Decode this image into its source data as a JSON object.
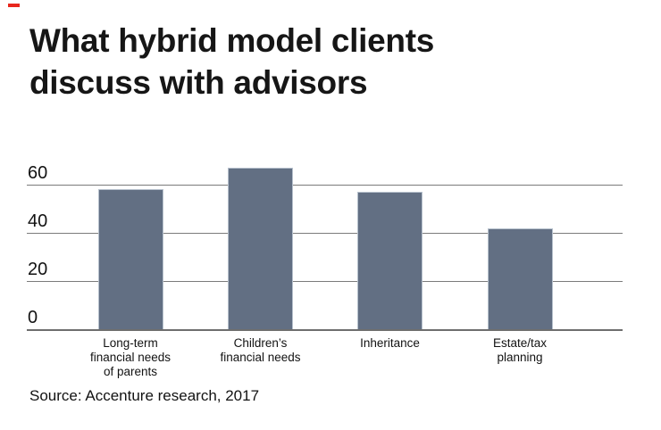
{
  "header": {
    "accent_color": "#e8271d",
    "title_lines": [
      "What hybrid model clients",
      "discuss with advisors"
    ]
  },
  "footer": {
    "source": "Source: Accenture research, 2017"
  },
  "chart_data": {
    "type": "bar",
    "title": "What hybrid model clients discuss with advisors",
    "categories": [
      "Long-term financial needs of parents",
      "Children’s financial needs",
      "Inheritance",
      "Estate/tax planning"
    ],
    "category_lines": [
      [
        "Long-term",
        "financial needs",
        "of parents"
      ],
      [
        "Children’s",
        "financial needs"
      ],
      [
        "Inheritance"
      ],
      [
        "Estate/tax",
        "planning"
      ]
    ],
    "values": [
      58,
      67,
      57,
      42
    ],
    "xlabel": "",
    "ylabel": "",
    "ylim": [
      0,
      70
    ],
    "yticks": [
      0,
      20,
      40,
      60
    ],
    "grid": true,
    "legend": false,
    "source": "Source: Accenture research, 2017",
    "colors": {
      "bar": "#626f83",
      "bar_edge": "#b6c0cc",
      "gridline": "#7b7b7b",
      "baseline": "#6e6e6e",
      "text": "#121212"
    }
  }
}
